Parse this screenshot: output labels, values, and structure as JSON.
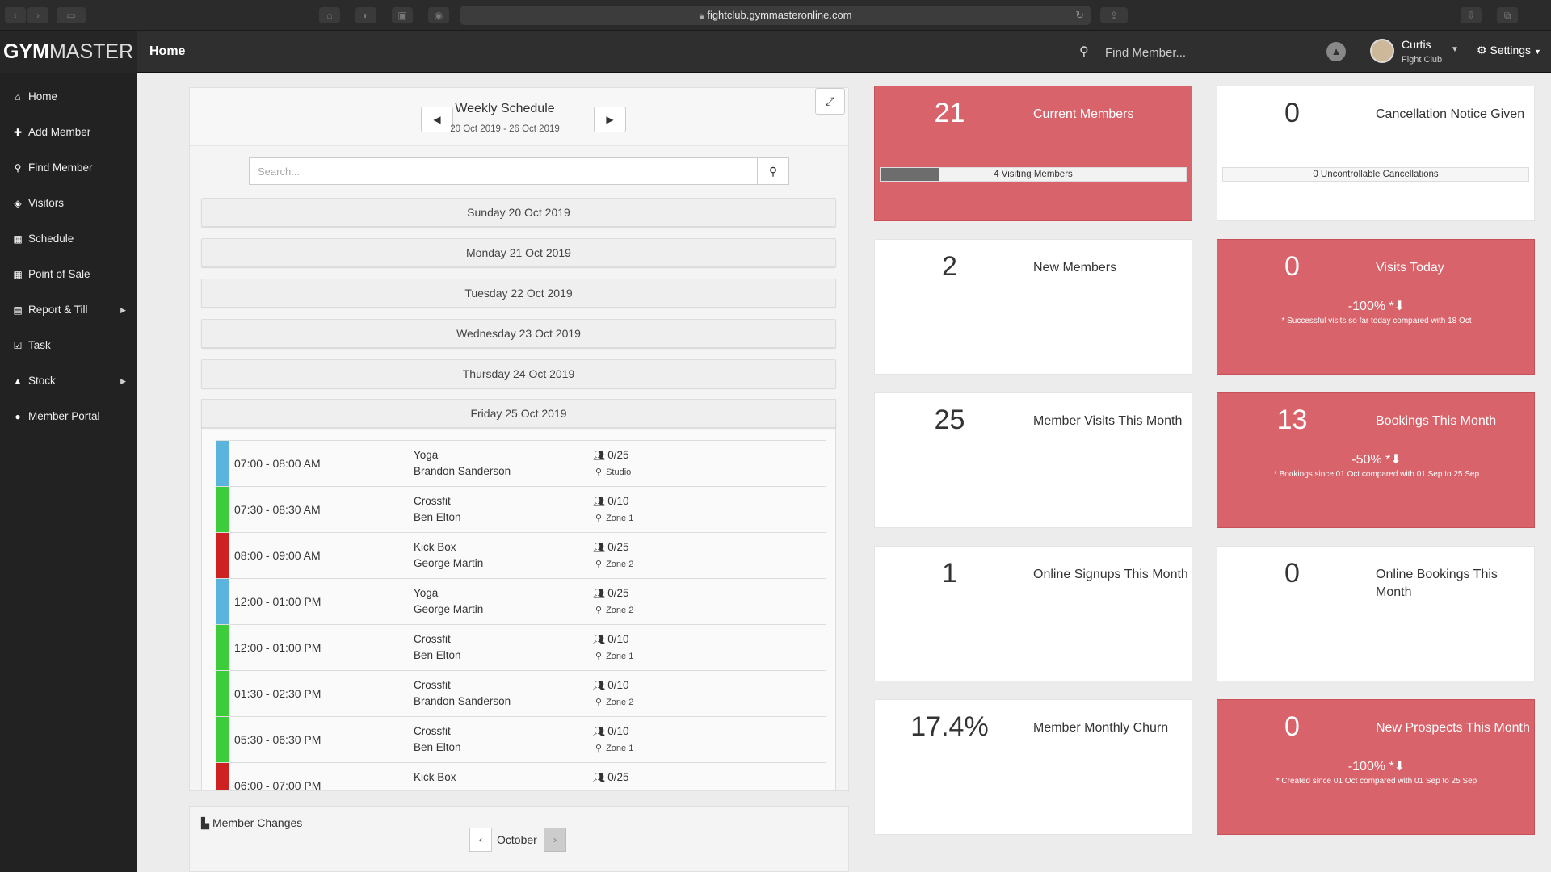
{
  "browser": {
    "url": "fightclub.gymmasteronline.com"
  },
  "header": {
    "logo_bold": "GYM",
    "logo_light": "MASTER",
    "title": "Home",
    "search_placeholder": "Find Member...",
    "user_name": "Curtis",
    "user_club": "Fight Club",
    "settings_label": "Settings"
  },
  "sidebar": {
    "items": [
      {
        "label": "Home",
        "icon": "home-icon",
        "glyph": "⌂"
      },
      {
        "label": "Add Member",
        "icon": "plus-icon",
        "glyph": "✚"
      },
      {
        "label": "Find Member",
        "icon": "search-icon",
        "glyph": "⚲"
      },
      {
        "label": "Visitors",
        "icon": "tag-icon",
        "glyph": "◈"
      },
      {
        "label": "Schedule",
        "icon": "calendar-icon",
        "glyph": "▦"
      },
      {
        "label": "Point of Sale",
        "icon": "grid-icon",
        "glyph": "▦"
      },
      {
        "label": "Report & Till",
        "icon": "print-icon",
        "glyph": "▤",
        "has_submenu": true
      },
      {
        "label": "Task",
        "icon": "check-icon",
        "glyph": "☑"
      },
      {
        "label": "Stock",
        "icon": "shirt-icon",
        "glyph": "▲",
        "has_submenu": true
      },
      {
        "label": "Member Portal",
        "icon": "globe-icon",
        "glyph": "●"
      }
    ]
  },
  "schedule": {
    "title": "Weekly Schedule",
    "range": "20 Oct 2019 - 26 Oct 2019",
    "search_placeholder": "Search...",
    "days": [
      "Sunday 20 Oct 2019",
      "Monday 21 Oct 2019",
      "Tuesday 22 Oct 2019",
      "Wednesday 23 Oct 2019",
      "Thursday 24 Oct 2019",
      "Friday 25 Oct 2019"
    ],
    "classes": [
      {
        "time": "07:00 - 08:00 AM",
        "name": "Yoga",
        "trainer": "Brandon Sanderson",
        "capacity": "0/25",
        "location": "Studio",
        "color": "#5ab4dc"
      },
      {
        "time": "07:30 - 08:30 AM",
        "name": "Crossfit",
        "trainer": "Ben Elton",
        "capacity": "0/10",
        "location": "Zone 1",
        "color": "#3ccc3c"
      },
      {
        "time": "08:00 - 09:00 AM",
        "name": "Kick Box",
        "trainer": "George Martin",
        "capacity": "0/25",
        "location": "Zone 2",
        "color": "#cc2222"
      },
      {
        "time": "12:00 - 01:00 PM",
        "name": "Yoga",
        "trainer": "George Martin",
        "capacity": "0/25",
        "location": "Zone 2",
        "color": "#5ab4dc"
      },
      {
        "time": "12:00 - 01:00 PM",
        "name": "Crossfit",
        "trainer": "Ben Elton",
        "capacity": "0/10",
        "location": "Zone 1",
        "color": "#3ccc3c"
      },
      {
        "time": "01:30 - 02:30 PM",
        "name": "Crossfit",
        "trainer": "Brandon Sanderson",
        "capacity": "0/10",
        "location": "Zone 2",
        "color": "#3ccc3c"
      },
      {
        "time": "05:30 - 06:30 PM",
        "name": "Crossfit",
        "trainer": "Ben Elton",
        "capacity": "0/10",
        "location": "Zone 1",
        "color": "#3ccc3c"
      },
      {
        "time": "06:00 - 07:00 PM",
        "name": "Kick Box",
        "trainer": "",
        "capacity": "0/25",
        "location": "",
        "color": "#cc2222"
      }
    ]
  },
  "member_changes": {
    "title": "Member Changes",
    "month": "October"
  },
  "cards": [
    {
      "value": "21",
      "label": "Current Members",
      "red": true,
      "progress_text": "4 Visiting Members",
      "progress_fraction": 0.19
    },
    {
      "value": "0",
      "label": "Cancellation Notice Given",
      "red": false,
      "progress_text": "0 Uncontrollable Cancellations",
      "progress_fraction": 0
    },
    {
      "value": "2",
      "label": "New Members",
      "red": false
    },
    {
      "value": "0",
      "label": "Visits Today",
      "red": true,
      "pct": "-100% *⬇",
      "note": "* Successful visits so far today compared with 18 Oct"
    },
    {
      "value": "25",
      "label": "Member Visits This Month",
      "red": false
    },
    {
      "value": "13",
      "label": "Bookings This Month",
      "red": true,
      "pct": "-50% *⬇",
      "note": "* Bookings since 01 Oct compared with 01 Sep to 25 Sep"
    },
    {
      "value": "1",
      "label": "Online Signups This Month",
      "red": false
    },
    {
      "value": "0",
      "label": "Online Bookings This Month",
      "red": false
    },
    {
      "value": "17.4%",
      "label": "Member Monthly Churn",
      "red": false
    },
    {
      "value": "0",
      "label": "New Prospects This Month",
      "red": true,
      "pct": "-100% *⬇",
      "note": "* Created since 01 Oct compared with 01 Sep to 25 Sep"
    }
  ],
  "colors": {
    "card_red": "#d9636b",
    "sidebar_bg": "#222222",
    "header_bg": "#2f2f2f"
  }
}
